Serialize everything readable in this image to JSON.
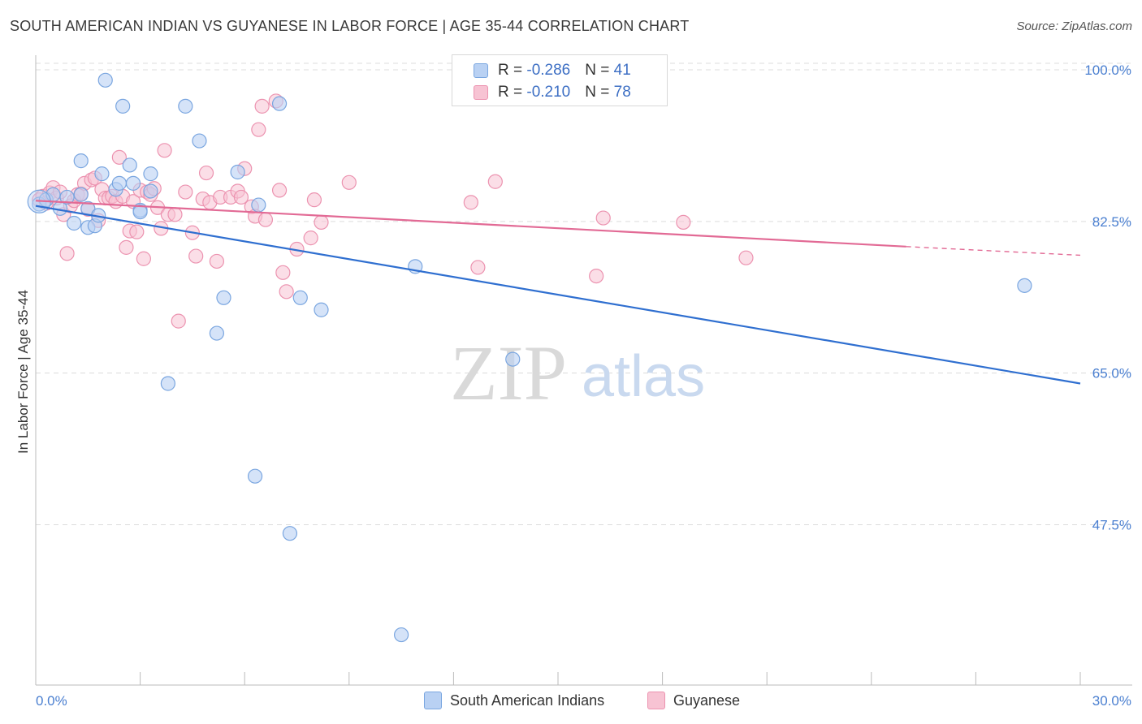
{
  "header": {
    "title": "SOUTH AMERICAN INDIAN VS GUYANESE IN LABOR FORCE | AGE 35-44 CORRELATION CHART",
    "source": "Source: ZipAtlas.com"
  },
  "legend_box": {
    "rows": [
      {
        "r_label": "R = ",
        "r_value": "-0.286",
        "n_label": "N = ",
        "n_value": "41"
      },
      {
        "r_label": "R = ",
        "r_value": "-0.210",
        "n_label": "N = ",
        "n_value": "78"
      }
    ]
  },
  "bottom_legend": {
    "items": [
      {
        "label": "South American Indians"
      },
      {
        "label": "Guyanese"
      }
    ]
  },
  "watermark": {
    "zip": "ZIP",
    "atlas": "atlas"
  },
  "colors": {
    "blue_fill": "#b9d1f3",
    "blue_stroke": "#7aa6e0",
    "blue_line": "#2f6fd0",
    "pink_fill": "#f7c3d3",
    "pink_stroke": "#ec93b0",
    "pink_line": "#e26a95",
    "grid": "#dcdcdc",
    "tick_text": "#4a7fd0"
  },
  "chart_data": {
    "type": "scatter",
    "title": "SOUTH AMERICAN INDIAN VS GUYANESE IN LABOR FORCE | AGE 35-44 CORRELATION CHART",
    "xlabel": "",
    "ylabel": "In Labor Force | Age 35-44",
    "xlim": [
      0.0,
      30.0
    ],
    "ylim": [
      29.0,
      101.5
    ],
    "x_tick_labels": [
      "0.0%",
      "30.0%"
    ],
    "y_ticks": [
      100.0,
      82.5,
      65.0,
      47.5
    ],
    "y_tick_labels": [
      "100.0%",
      "82.5%",
      "65.0%",
      "47.5%"
    ],
    "grid": true,
    "legend_position": "top-center",
    "series": [
      {
        "name": "South American Indians",
        "R": -0.286,
        "N": 41,
        "points": [
          [
            0.1,
            84.5
          ],
          [
            0.3,
            85.0
          ],
          [
            0.5,
            85.6
          ],
          [
            0.7,
            84.0
          ],
          [
            0.9,
            85.3
          ],
          [
            1.1,
            82.3
          ],
          [
            1.3,
            89.5
          ],
          [
            1.3,
            85.6
          ],
          [
            1.5,
            84.0
          ],
          [
            1.5,
            81.8
          ],
          [
            1.7,
            82.0
          ],
          [
            1.8,
            83.2
          ],
          [
            1.9,
            88.0
          ],
          [
            2.0,
            98.8
          ],
          [
            2.3,
            86.2
          ],
          [
            2.4,
            86.9
          ],
          [
            2.5,
            95.8
          ],
          [
            2.7,
            89.0
          ],
          [
            2.8,
            86.9
          ],
          [
            3.0,
            83.8
          ],
          [
            3.0,
            83.6
          ],
          [
            3.3,
            88.0
          ],
          [
            3.3,
            86.0
          ],
          [
            3.8,
            63.8
          ],
          [
            4.3,
            95.8
          ],
          [
            4.7,
            91.8
          ],
          [
            5.2,
            69.6
          ],
          [
            5.4,
            73.7
          ],
          [
            5.8,
            88.2
          ],
          [
            6.3,
            53.1
          ],
          [
            6.4,
            84.4
          ],
          [
            7.0,
            96.1
          ],
          [
            7.3,
            46.5
          ],
          [
            7.6,
            73.7
          ],
          [
            8.2,
            72.3
          ],
          [
            10.5,
            34.8
          ],
          [
            10.9,
            77.3
          ],
          [
            13.7,
            66.6
          ],
          [
            28.4,
            75.1
          ]
        ],
        "trend": {
          "x": [
            0.0,
            30.0
          ],
          "y": [
            84.3,
            63.8
          ]
        }
      },
      {
        "name": "Guyanese",
        "R": -0.21,
        "N": 78,
        "points": [
          [
            0.1,
            85.0
          ],
          [
            0.2,
            85.4
          ],
          [
            0.3,
            84.6
          ],
          [
            0.4,
            85.8
          ],
          [
            0.5,
            86.4
          ],
          [
            0.6,
            85.2
          ],
          [
            0.7,
            85.9
          ],
          [
            0.8,
            83.3
          ],
          [
            0.9,
            78.8
          ],
          [
            1.0,
            84.3
          ],
          [
            1.1,
            84.9
          ],
          [
            1.2,
            85.6
          ],
          [
            1.3,
            85.7
          ],
          [
            1.4,
            86.9
          ],
          [
            1.5,
            83.9
          ],
          [
            1.6,
            87.3
          ],
          [
            1.7,
            87.5
          ],
          [
            1.8,
            82.6
          ],
          [
            1.9,
            86.2
          ],
          [
            2.0,
            85.2
          ],
          [
            2.1,
            85.2
          ],
          [
            2.2,
            85.4
          ],
          [
            2.3,
            84.8
          ],
          [
            2.4,
            89.9
          ],
          [
            2.5,
            85.4
          ],
          [
            2.6,
            79.5
          ],
          [
            2.7,
            81.4
          ],
          [
            2.8,
            84.8
          ],
          [
            2.9,
            81.3
          ],
          [
            3.0,
            86.1
          ],
          [
            3.1,
            78.2
          ],
          [
            3.2,
            85.9
          ],
          [
            3.3,
            85.6
          ],
          [
            3.4,
            86.3
          ],
          [
            3.5,
            84.1
          ],
          [
            3.6,
            81.7
          ],
          [
            3.7,
            90.7
          ],
          [
            3.8,
            83.3
          ],
          [
            4.0,
            83.3
          ],
          [
            4.1,
            71.0
          ],
          [
            4.3,
            85.9
          ],
          [
            4.5,
            81.2
          ],
          [
            4.6,
            78.5
          ],
          [
            4.8,
            85.1
          ],
          [
            4.9,
            88.1
          ],
          [
            5.0,
            84.7
          ],
          [
            5.2,
            77.9
          ],
          [
            5.3,
            85.3
          ],
          [
            5.6,
            85.3
          ],
          [
            5.8,
            86.0
          ],
          [
            5.9,
            85.3
          ],
          [
            6.0,
            88.6
          ],
          [
            6.2,
            84.2
          ],
          [
            6.3,
            83.1
          ],
          [
            6.4,
            93.1
          ],
          [
            6.5,
            95.8
          ],
          [
            6.6,
            82.7
          ],
          [
            6.9,
            96.4
          ],
          [
            7.0,
            86.1
          ],
          [
            7.1,
            76.6
          ],
          [
            7.2,
            74.4
          ],
          [
            7.5,
            79.3
          ],
          [
            7.9,
            80.6
          ],
          [
            8.0,
            85.0
          ],
          [
            8.2,
            82.4
          ],
          [
            9.0,
            87.0
          ],
          [
            12.5,
            84.7
          ],
          [
            12.7,
            77.2
          ],
          [
            13.2,
            87.1
          ],
          [
            16.1,
            76.2
          ],
          [
            16.3,
            82.9
          ],
          [
            18.6,
            82.4
          ],
          [
            20.4,
            78.3
          ]
        ],
        "trend": {
          "x": [
            0.0,
            25.0
          ],
          "y": [
            84.9,
            79.6
          ]
        },
        "trend_dashed": {
          "x": [
            25.0,
            30.0
          ],
          "y": [
            79.6,
            78.6
          ]
        }
      }
    ]
  }
}
